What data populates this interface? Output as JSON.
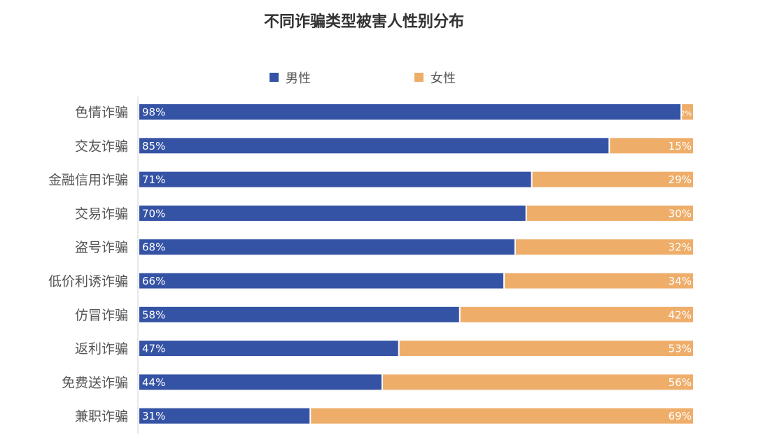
{
  "chart_data": {
    "type": "bar",
    "orientation": "horizontal",
    "stacked": true,
    "percent_stacked": true,
    "title": "不同诈骗类型被害人性别分布",
    "xlabel": "",
    "ylabel": "",
    "xlim": [
      0,
      100
    ],
    "grid": false,
    "legend_position": "top-center",
    "categories": [
      "色情诈骗",
      "交友诈骗",
      "金融信用诈骗",
      "交易诈骗",
      "盗号诈骗",
      "低价利诱诈骗",
      "仿冒诈骗",
      "返利诈骗",
      "免费送诈骗",
      "兼职诈骗"
    ],
    "series": [
      {
        "name": "男性",
        "color": "#3553a5",
        "values": [
          98,
          85,
          71,
          70,
          68,
          66,
          58,
          47,
          44,
          31
        ],
        "labels": [
          "98%",
          "85%",
          "71%",
          "70%",
          "68%",
          "66%",
          "58%",
          "47%",
          "44%",
          "31%"
        ]
      },
      {
        "name": "女性",
        "color": "#eeae6a",
        "values": [
          2,
          15,
          29,
          30,
          32,
          34,
          42,
          53,
          56,
          69
        ],
        "labels": [
          "2%",
          "15%",
          "29%",
          "30%",
          "32%",
          "34%",
          "42%",
          "53%",
          "56%",
          "69%"
        ]
      }
    ]
  }
}
